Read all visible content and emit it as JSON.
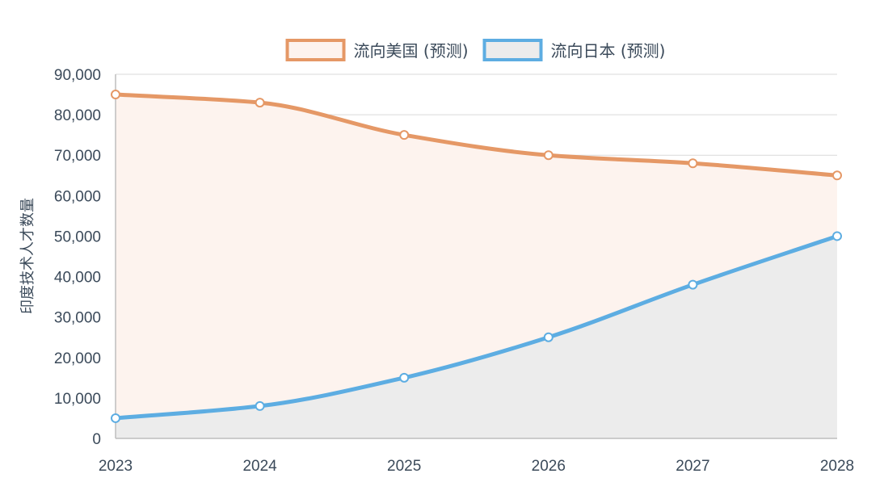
{
  "chart_data": {
    "type": "area",
    "title": "",
    "xlabel": "",
    "ylabel": "印度技术人才数量",
    "categories": [
      "2023",
      "2024",
      "2025",
      "2026",
      "2027",
      "2028"
    ],
    "ylim": [
      0,
      90000
    ],
    "y_ticks": [
      0,
      10000,
      20000,
      30000,
      40000,
      50000,
      60000,
      70000,
      80000,
      90000
    ],
    "y_tick_labels": [
      "0",
      "10,000",
      "20,000",
      "30,000",
      "40,000",
      "50,000",
      "60,000",
      "70,000",
      "80,000",
      "90,000"
    ],
    "grid": true,
    "legend_position": "top-center",
    "series": [
      {
        "name": "流向美国 (预测)",
        "values": [
          85000,
          83000,
          75000,
          70000,
          68000,
          65000
        ],
        "color": "#e59866",
        "fill": "#fdf3ee"
      },
      {
        "name": "流向日本 (预测)",
        "values": [
          5000,
          8000,
          15000,
          25000,
          38000,
          50000
        ],
        "color": "#5dade2",
        "fill": "#ececec"
      }
    ]
  }
}
